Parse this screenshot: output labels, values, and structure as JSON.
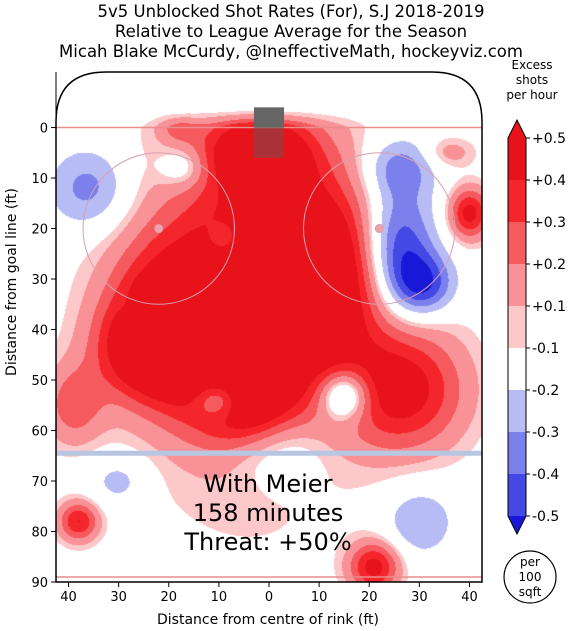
{
  "title": {
    "line1": "5v5 Unblocked Shot Rates (For), S.J 2018-2019",
    "line2": "Relative to League Average for the Season",
    "line3": "Micah Blake McCurdy, @IneffectiveMath, hockeyviz.com"
  },
  "chart_data": {
    "type": "heatmap",
    "xlabel": "Distance from centre of rink (ft)",
    "ylabel": "Distance from goal line (ft)",
    "x_range": [
      -42.5,
      42.5
    ],
    "y_range": [
      90,
      -11
    ],
    "x_ticks": [
      {
        "value": -40,
        "label": "40"
      },
      {
        "value": -30,
        "label": "30"
      },
      {
        "value": -20,
        "label": "20"
      },
      {
        "value": -10,
        "label": "10"
      },
      {
        "value": 0,
        "label": "0"
      },
      {
        "value": 10,
        "label": "10"
      },
      {
        "value": 20,
        "label": "20"
      },
      {
        "value": 30,
        "label": "30"
      },
      {
        "value": 40,
        "label": "40"
      }
    ],
    "y_ticks": [
      0,
      10,
      20,
      30,
      40,
      50,
      60,
      70,
      80,
      90
    ],
    "annotation": {
      "line1": "With Meier",
      "line2": "158 minutes",
      "line3": "Threat: +50%"
    },
    "colorbar": {
      "title_lines": [
        "Excess",
        "shots",
        "per hour"
      ],
      "levels": [
        {
          "label": "+0.5",
          "color": "#e8121a"
        },
        {
          "label": "+0.4",
          "color": "#f4262b"
        },
        {
          "label": "+0.3",
          "color": "#f45a5e"
        },
        {
          "label": "+0.2",
          "color": "#f99296"
        },
        {
          "label": "+0.1",
          "color": "#fcc8c9"
        },
        {
          "label": "-0.1",
          "color": "#ffffff"
        },
        {
          "label": "-0.2",
          "color": "#b8bcf5"
        },
        {
          "label": "-0.3",
          "color": "#7b80ec"
        },
        {
          "label": "-0.4",
          "color": "#4448e4"
        },
        {
          "label": "-0.5",
          "color": "#1a18d8"
        }
      ],
      "extend_top_color": "#e8121a",
      "extend_bottom_color": "#1a18d8"
    },
    "unit_badge": {
      "line1": "per",
      "line2": "100",
      "line3": "sqft"
    },
    "blobs": [
      {
        "x": -3,
        "y": 33,
        "rx": 20,
        "ry": 32,
        "v": 0.5
      },
      {
        "x": 9,
        "y": 30,
        "rx": 13,
        "ry": 18,
        "v": 0.5
      },
      {
        "x": -20,
        "y": 38,
        "rx": 12,
        "ry": 15,
        "v": 0.45
      },
      {
        "x": -24,
        "y": 44,
        "rx": 10,
        "ry": 9,
        "v": 0.4
      },
      {
        "x": 27,
        "y": 52,
        "rx": 12,
        "ry": 12,
        "v": 0.45
      },
      {
        "x": -2,
        "y": 5,
        "rx": 10,
        "ry": 7,
        "v": 0.5
      },
      {
        "x": -5,
        "y": 55,
        "rx": 10,
        "ry": 7,
        "v": 0.4
      },
      {
        "x": 40,
        "y": 17,
        "rx": 4,
        "ry": 5,
        "v": 0.45
      },
      {
        "x": -39,
        "y": 55,
        "rx": 6,
        "ry": 8,
        "v": 0.25
      },
      {
        "x": 21,
        "y": 87,
        "rx": 5,
        "ry": 5,
        "v": 0.45
      },
      {
        "x": -38,
        "y": 78,
        "rx": 4,
        "ry": 4,
        "v": 0.4
      },
      {
        "x": 36,
        "y": 5,
        "rx": 5,
        "ry": 3,
        "v": 0.15
      },
      {
        "x": -18,
        "y": 0,
        "rx": 4,
        "ry": 3,
        "v": 0.15
      },
      {
        "x": 26,
        "y": 24,
        "rx": 7,
        "ry": 12,
        "v": -0.45
      },
      {
        "x": 31,
        "y": 31,
        "rx": 6,
        "ry": 6,
        "v": -0.35
      },
      {
        "x": 26,
        "y": 8,
        "rx": 7,
        "ry": 6,
        "v": -0.25
      },
      {
        "x": -36,
        "y": 12,
        "rx": 8,
        "ry": 8,
        "v": -0.25
      },
      {
        "x": -17,
        "y": 8,
        "rx": 5,
        "ry": 4,
        "v": -0.2
      },
      {
        "x": -10,
        "y": 54,
        "rx": 5,
        "ry": 4,
        "v": -0.4
      },
      {
        "x": 15,
        "y": 53,
        "rx": 5,
        "ry": 5,
        "v": -0.45
      },
      {
        "x": 2,
        "y": 63,
        "rx": 10,
        "ry": 9,
        "v": -0.2
      },
      {
        "x": 30,
        "y": 78,
        "rx": 7,
        "ry": 7,
        "v": -0.2
      },
      {
        "x": -30,
        "y": 70,
        "rx": 6,
        "ry": 5,
        "v": -0.15
      },
      {
        "x": -9,
        "y": 22,
        "rx": 3,
        "ry": 3,
        "v": -0.2
      },
      {
        "x": -27,
        "y": 36,
        "rx": 3,
        "ry": 3,
        "v": -0.1
      },
      {
        "x": -10,
        "y": 38,
        "rx": 3,
        "ry": 3,
        "v": -0.1
      }
    ]
  }
}
